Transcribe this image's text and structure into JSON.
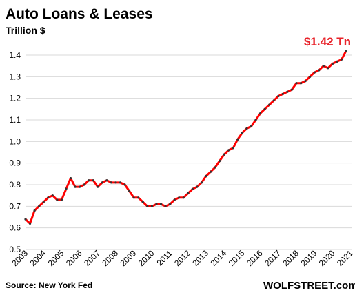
{
  "chart_data": {
    "type": "line",
    "title": "Auto Loans & Leases",
    "subtitle": "Trillion $",
    "ylim": [
      0.5,
      1.45
    ],
    "yticks": [
      "0.5",
      "0.6",
      "0.7",
      "0.8",
      "0.9",
      "1.0",
      "1.1",
      "1.2",
      "1.3",
      "1.4"
    ],
    "xticks": [
      "2003",
      "2004",
      "2005",
      "2006",
      "2007",
      "2008",
      "2009",
      "2010",
      "2011",
      "2012",
      "2013",
      "2014",
      "2015",
      "2016",
      "2017",
      "2018",
      "2019",
      "2020",
      "2021"
    ],
    "x_start": 2003.0,
    "x_step": 0.25,
    "grid": true,
    "line_color": "#ff0000",
    "marker_color": "#333333",
    "values": [
      0.64,
      0.62,
      0.68,
      0.7,
      0.72,
      0.74,
      0.75,
      0.73,
      0.73,
      0.78,
      0.83,
      0.79,
      0.79,
      0.8,
      0.82,
      0.82,
      0.79,
      0.81,
      0.82,
      0.81,
      0.81,
      0.81,
      0.8,
      0.77,
      0.74,
      0.74,
      0.72,
      0.7,
      0.7,
      0.71,
      0.71,
      0.7,
      0.71,
      0.73,
      0.74,
      0.74,
      0.76,
      0.78,
      0.79,
      0.81,
      0.84,
      0.86,
      0.88,
      0.91,
      0.94,
      0.96,
      0.97,
      1.01,
      1.04,
      1.06,
      1.07,
      1.1,
      1.13,
      1.15,
      1.17,
      1.19,
      1.21,
      1.22,
      1.23,
      1.24,
      1.27,
      1.27,
      1.28,
      1.3,
      1.32,
      1.33,
      1.35,
      1.34,
      1.36,
      1.37,
      1.38,
      1.42
    ],
    "annotation": "$1.42 Tn",
    "annotation_color": "#e8232a",
    "source": "Source: New York Fed",
    "brand": "WOLFSTREET.com"
  }
}
